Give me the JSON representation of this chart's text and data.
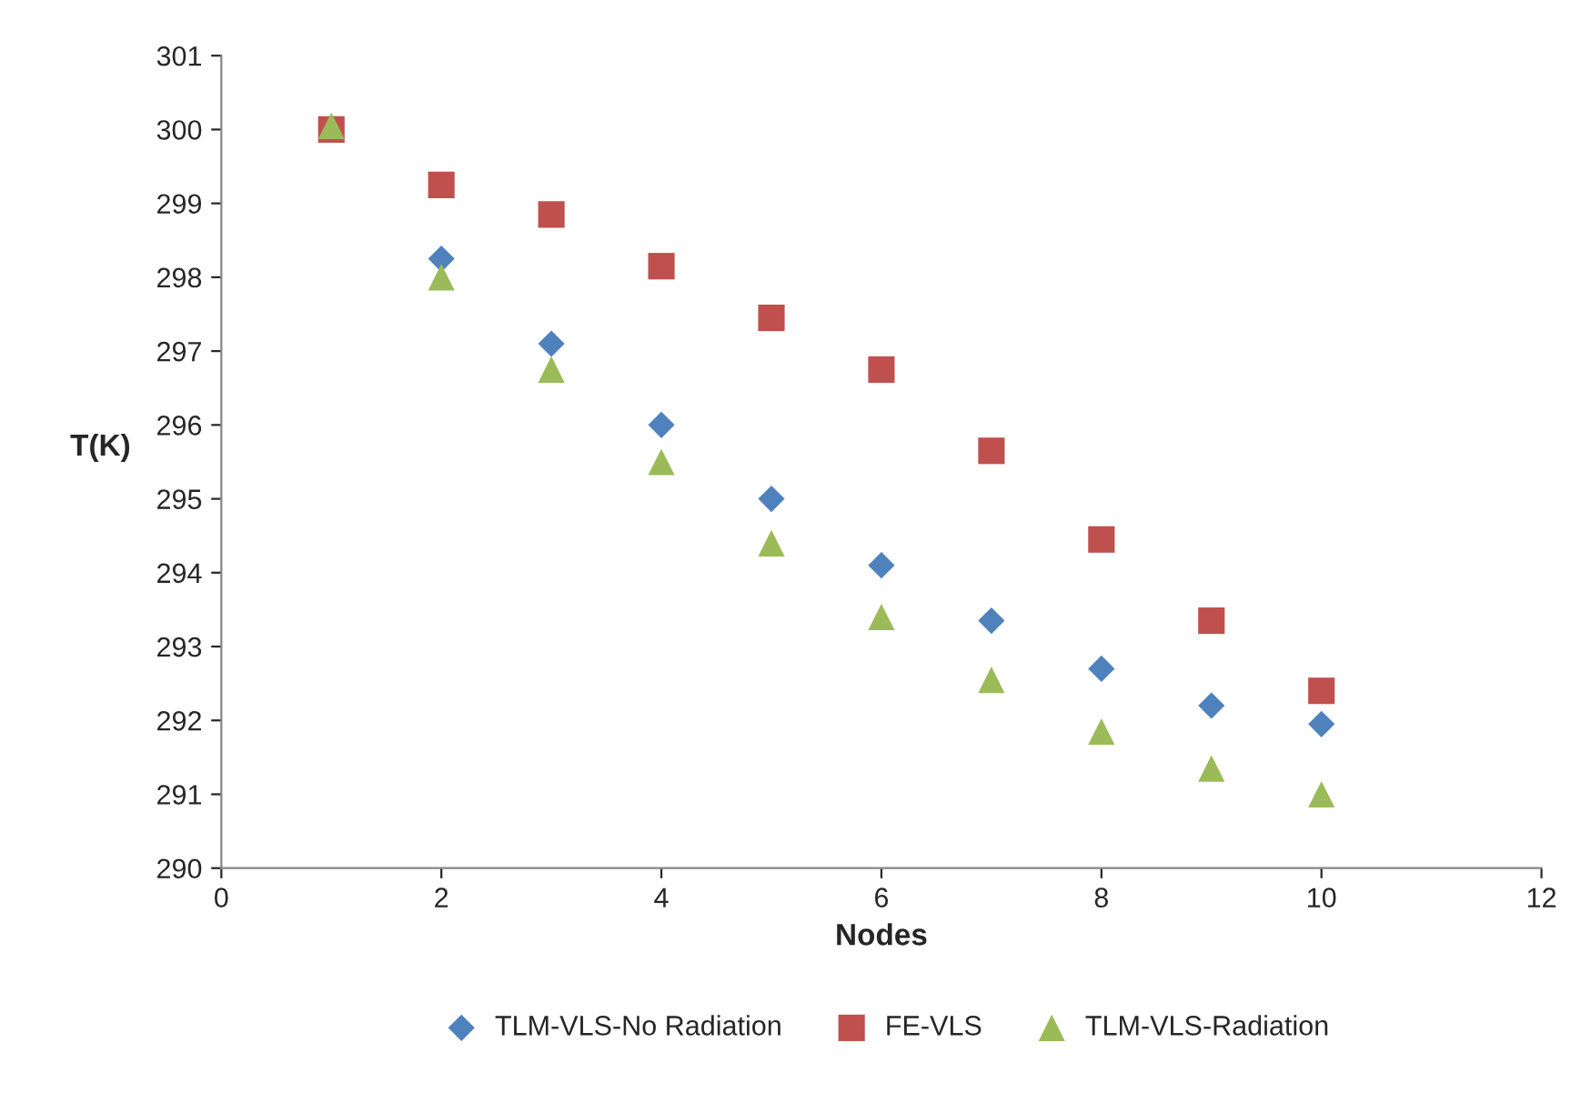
{
  "chart_data": {
    "type": "scatter",
    "xlabel": "Nodes",
    "ylabel": "T(K)",
    "x": [
      1,
      2,
      3,
      4,
      5,
      6,
      7,
      8,
      9,
      10
    ],
    "series": [
      {
        "name": "TLM-VLS-No Radiation",
        "color": "#4f81bd",
        "marker": "diamond",
        "values": [
          null,
          298.25,
          297.1,
          296.0,
          295.0,
          294.1,
          293.35,
          292.7,
          292.2,
          291.95
        ]
      },
      {
        "name": "FE-VLS",
        "color": "#c0504d",
        "marker": "square",
        "values": [
          300.0,
          299.25,
          298.85,
          298.15,
          297.45,
          296.75,
          295.65,
          294.45,
          293.35,
          292.4
        ]
      },
      {
        "name": "TLM-VLS-Radiation",
        "color": "#9bbb59",
        "marker": "triangle",
        "values": [
          300.05,
          298.0,
          296.75,
          295.5,
          294.4,
          293.4,
          292.55,
          291.85,
          291.35,
          291.0
        ]
      }
    ],
    "xlim": [
      0,
      12
    ],
    "xticks": [
      0,
      2,
      4,
      6,
      8,
      10,
      12
    ],
    "ylim": [
      290,
      301
    ],
    "yticks": [
      290,
      291,
      292,
      293,
      294,
      295,
      296,
      297,
      298,
      299,
      300,
      301
    ],
    "grid": false,
    "legend": "bottom"
  }
}
